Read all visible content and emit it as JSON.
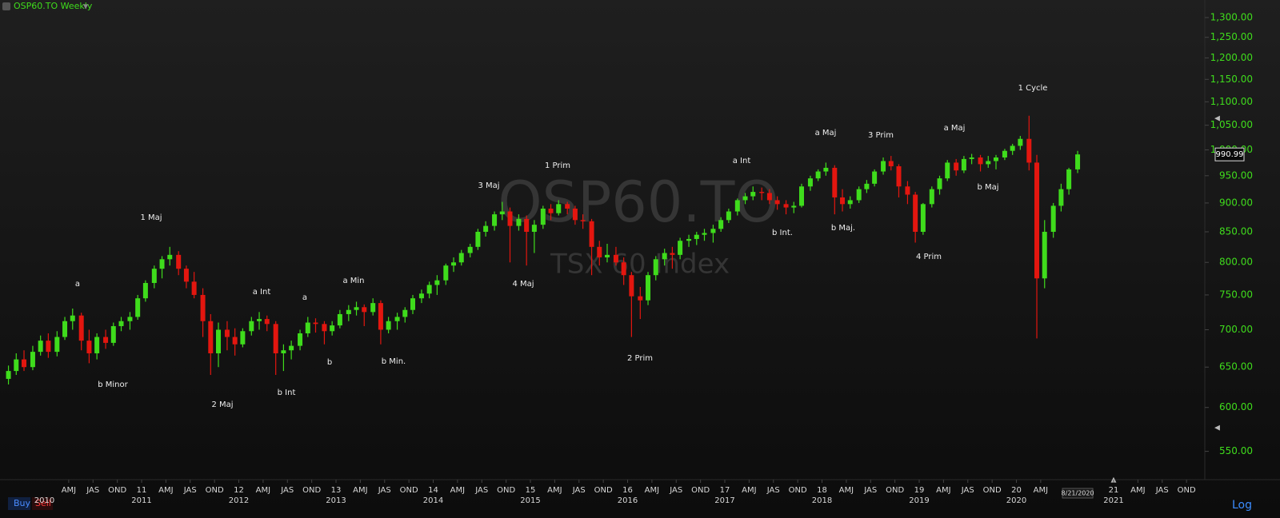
{
  "chart_data": {
    "type": "candlestick",
    "title": "OSP60.TO Weekly",
    "watermark": "OSP60.TO",
    "watermark_subtitle": "TSX 60 Index",
    "buttons": [
      "Buy",
      "Sell"
    ],
    "scale_label": "Log",
    "last_date": "8/21/2020",
    "last_price": 990.99,
    "log": true,
    "grid": false,
    "up_color": "#3fdc1c",
    "down_color": "#e3160f",
    "xlim": [
      2009.543,
      2021.93
    ],
    "ylim": [
      520,
      1346
    ],
    "yticks": [
      {
        "value": 550,
        "label": "550.00"
      },
      {
        "value": 600,
        "label": "600.00"
      },
      {
        "value": 650,
        "label": "650.00"
      },
      {
        "value": 700,
        "label": "700.00"
      },
      {
        "value": 750,
        "label": "750.00"
      },
      {
        "value": 800,
        "label": "800.00"
      },
      {
        "value": 850,
        "label": "850.00"
      },
      {
        "value": 900,
        "label": "900.00"
      },
      {
        "value": 950,
        "label": "950.00"
      },
      {
        "value": 1000,
        "label": "1,000.00"
      },
      {
        "value": 1050,
        "label": "1,050.00"
      },
      {
        "value": 1100,
        "label": "1,100.00"
      },
      {
        "value": 1150,
        "label": "1,150.00"
      },
      {
        "value": 1200,
        "label": "1,200.00"
      },
      {
        "value": 1250,
        "label": "1,250.00"
      },
      {
        "value": 1300,
        "label": "1,300.00"
      }
    ],
    "xticks": [
      {
        "value": 2010.25,
        "label": "AMJ"
      },
      {
        "value": 2010.5,
        "label": "JAS"
      },
      {
        "value": 2010.75,
        "label": "OND"
      },
      {
        "value": 2011,
        "label": "11"
      },
      {
        "value": 2011.25,
        "label": "AMJ"
      },
      {
        "value": 2011.5,
        "label": "JAS"
      },
      {
        "value": 2011.75,
        "label": "OND"
      },
      {
        "value": 2012,
        "label": "12"
      },
      {
        "value": 2012.25,
        "label": "AMJ"
      },
      {
        "value": 2012.5,
        "label": "JAS"
      },
      {
        "value": 2012.75,
        "label": "OND"
      },
      {
        "value": 2013,
        "label": "13"
      },
      {
        "value": 2013.25,
        "label": "AMJ"
      },
      {
        "value": 2013.5,
        "label": "JAS"
      },
      {
        "value": 2013.75,
        "label": "OND"
      },
      {
        "value": 2014,
        "label": "14"
      },
      {
        "value": 2014.25,
        "label": "AMJ"
      },
      {
        "value": 2014.5,
        "label": "JAS"
      },
      {
        "value": 2014.75,
        "label": "OND"
      },
      {
        "value": 2015,
        "label": "15"
      },
      {
        "value": 2015.25,
        "label": "AMJ"
      },
      {
        "value": 2015.5,
        "label": "JAS"
      },
      {
        "value": 2015.75,
        "label": "OND"
      },
      {
        "value": 2016,
        "label": "16"
      },
      {
        "value": 2016.25,
        "label": "AMJ"
      },
      {
        "value": 2016.5,
        "label": "JAS"
      },
      {
        "value": 2016.75,
        "label": "OND"
      },
      {
        "value": 2017,
        "label": "17"
      },
      {
        "value": 2017.25,
        "label": "AMJ"
      },
      {
        "value": 2017.5,
        "label": "JAS"
      },
      {
        "value": 2017.75,
        "label": "OND"
      },
      {
        "value": 2018,
        "label": "18"
      },
      {
        "value": 2018.25,
        "label": "AMJ"
      },
      {
        "value": 2018.5,
        "label": "JAS"
      },
      {
        "value": 2018.75,
        "label": "OND"
      },
      {
        "value": 2019,
        "label": "19"
      },
      {
        "value": 2019.25,
        "label": "AMJ"
      },
      {
        "value": 2019.5,
        "label": "JAS"
      },
      {
        "value": 2019.75,
        "label": "OND"
      },
      {
        "value": 2020,
        "label": "20"
      },
      {
        "value": 2020.25,
        "label": "AMJ"
      },
      {
        "value": 2021,
        "label": "21"
      },
      {
        "value": 2021.25,
        "label": "AMJ"
      },
      {
        "value": 2021.5,
        "label": "JAS"
      },
      {
        "value": 2021.75,
        "label": "OND"
      }
    ],
    "year_ticks": [
      2010,
      2011,
      2012,
      2013,
      2014,
      2015,
      2016,
      2017,
      2018,
      2019,
      2020,
      2021
    ],
    "annotations": [
      "a",
      "b Minor",
      "1 Maj",
      "2 Maj",
      "a Int",
      "b Int",
      "a",
      "b",
      "a Min",
      "b Min.",
      "3 Maj",
      "4 Maj",
      "1 Prim",
      "2 Prim",
      "a Int",
      "b Int.",
      "a Maj",
      "b Maj.",
      "3 Prim",
      "4 Prim",
      "a Maj",
      "b Maj",
      "1 Cycle"
    ],
    "x": [
      2009.63,
      2009.71,
      2009.79,
      2009.88,
      2009.96,
      2010.04,
      2010.13,
      2010.21,
      2010.29,
      2010.38,
      2010.46,
      2010.54,
      2010.63,
      2010.71,
      2010.79,
      2010.88,
      2010.96,
      2011.04,
      2011.13,
      2011.21,
      2011.29,
      2011.38,
      2011.46,
      2011.54,
      2011.63,
      2011.71,
      2011.79,
      2011.88,
      2011.96,
      2012.04,
      2012.13,
      2012.21,
      2012.29,
      2012.38,
      2012.46,
      2012.54,
      2012.63,
      2012.71,
      2012.79,
      2012.88,
      2012.96,
      2013.04,
      2013.13,
      2013.21,
      2013.29,
      2013.38,
      2013.46,
      2013.54,
      2013.63,
      2013.71,
      2013.79,
      2013.88,
      2013.96,
      2014.04,
      2014.13,
      2014.21,
      2014.29,
      2014.38,
      2014.46,
      2014.54,
      2014.63,
      2014.71,
      2014.79,
      2014.88,
      2014.96,
      2015.04,
      2015.13,
      2015.21,
      2015.29,
      2015.38,
      2015.46,
      2015.54,
      2015.63,
      2015.71,
      2015.79,
      2015.88,
      2015.96,
      2016.04,
      2016.13,
      2016.21,
      2016.29,
      2016.38,
      2016.46,
      2016.54,
      2016.63,
      2016.71,
      2016.79,
      2016.88,
      2016.96,
      2017.04,
      2017.13,
      2017.21,
      2017.29,
      2017.38,
      2017.46,
      2017.54,
      2017.63,
      2017.71,
      2017.79,
      2017.88,
      2017.96,
      2018.04,
      2018.13,
      2018.21,
      2018.29,
      2018.38,
      2018.46,
      2018.54,
      2018.63,
      2018.71,
      2018.79,
      2018.88,
      2018.96,
      2019.04,
      2019.13,
      2019.21,
      2019.29,
      2019.38,
      2019.46,
      2019.54,
      2019.63,
      2019.71,
      2019.79,
      2019.88,
      2019.96,
      2020.04,
      2020.13,
      2020.21,
      2020.29,
      2020.38,
      2020.46,
      2020.54,
      2020.63
    ],
    "open": [
      635,
      645,
      660,
      650,
      670,
      685,
      670,
      690,
      712,
      720,
      685,
      668,
      690,
      682,
      705,
      712,
      718,
      745,
      768,
      790,
      805,
      812,
      790,
      770,
      750,
      712,
      668,
      700,
      690,
      680,
      698,
      712,
      715,
      708,
      668,
      672,
      678,
      695,
      710,
      708,
      698,
      706,
      722,
      728,
      732,
      725,
      738,
      700,
      712,
      718,
      728,
      745,
      752,
      765,
      772,
      795,
      800,
      815,
      825,
      850,
      860,
      880,
      885,
      860,
      872,
      850,
      862,
      890,
      882,
      898,
      890,
      870,
      868,
      825,
      808,
      812,
      800,
      780,
      748,
      742,
      780,
      805,
      815,
      812,
      835,
      838,
      845,
      848,
      855,
      870,
      885,
      905,
      912,
      920,
      918,
      905,
      898,
      892,
      895,
      930,
      945,
      958,
      965,
      910,
      898,
      905,
      925,
      935,
      958,
      978,
      968,
      930,
      915,
      850,
      898,
      925,
      945,
      975,
      960,
      982,
      985,
      972,
      978,
      985,
      998,
      1008,
      1022,
      975,
      775,
      850,
      895,
      925,
      962
    ],
    "high": [
      652,
      668,
      672,
      678,
      692,
      695,
      698,
      718,
      730,
      724,
      700,
      695,
      700,
      710,
      718,
      725,
      750,
      772,
      795,
      810,
      825,
      818,
      795,
      785,
      760,
      722,
      710,
      712,
      702,
      702,
      718,
      725,
      720,
      712,
      680,
      685,
      700,
      718,
      716,
      712,
      712,
      728,
      735,
      740,
      736,
      745,
      742,
      718,
      724,
      732,
      750,
      758,
      770,
      780,
      798,
      808,
      820,
      830,
      855,
      868,
      885,
      902,
      892,
      880,
      878,
      870,
      895,
      898,
      905,
      902,
      895,
      880,
      872,
      835,
      830,
      825,
      808,
      785,
      762,
      785,
      810,
      822,
      825,
      840,
      845,
      850,
      855,
      862,
      875,
      890,
      908,
      918,
      930,
      928,
      925,
      912,
      905,
      902,
      935,
      950,
      962,
      975,
      970,
      925,
      912,
      930,
      942,
      962,
      985,
      988,
      972,
      940,
      920,
      900,
      930,
      950,
      980,
      982,
      988,
      992,
      990,
      988,
      990,
      1002,
      1012,
      1028,
      1070,
      990,
      870,
      900,
      935,
      965,
      998
    ],
    "low": [
      628,
      640,
      645,
      646,
      665,
      662,
      664,
      686,
      700,
      672,
      655,
      660,
      674,
      678,
      698,
      700,
      714,
      740,
      760,
      775,
      795,
      780,
      760,
      745,
      690,
      640,
      650,
      672,
      665,
      676,
      692,
      700,
      698,
      640,
      645,
      660,
      672,
      690,
      696,
      680,
      692,
      702,
      712,
      720,
      705,
      720,
      680,
      695,
      700,
      710,
      722,
      738,
      745,
      750,
      765,
      785,
      795,
      808,
      820,
      842,
      852,
      870,
      800,
      852,
      795,
      815,
      855,
      870,
      878,
      880,
      862,
      855,
      780,
      795,
      800,
      795,
      765,
      690,
      715,
      735,
      772,
      795,
      790,
      805,
      825,
      828,
      835,
      832,
      850,
      865,
      878,
      898,
      905,
      905,
      898,
      888,
      880,
      882,
      892,
      922,
      940,
      950,
      880,
      885,
      890,
      900,
      918,
      930,
      952,
      960,
      910,
      898,
      832,
      845,
      892,
      915,
      940,
      950,
      955,
      972,
      958,
      965,
      962,
      980,
      990,
      1000,
      960,
      688,
      760,
      840,
      885,
      915,
      955
    ],
    "close": [
      645,
      660,
      650,
      670,
      685,
      670,
      690,
      712,
      720,
      685,
      668,
      690,
      682,
      705,
      712,
      718,
      745,
      768,
      790,
      805,
      812,
      790,
      770,
      750,
      712,
      668,
      700,
      690,
      680,
      698,
      712,
      715,
      708,
      668,
      672,
      678,
      695,
      710,
      708,
      698,
      706,
      722,
      728,
      732,
      725,
      738,
      700,
      712,
      718,
      728,
      745,
      752,
      765,
      772,
      795,
      800,
      815,
      825,
      850,
      860,
      880,
      885,
      860,
      872,
      850,
      862,
      890,
      882,
      898,
      890,
      870,
      868,
      825,
      808,
      812,
      800,
      780,
      748,
      742,
      780,
      805,
      815,
      812,
      835,
      838,
      845,
      848,
      855,
      870,
      885,
      905,
      912,
      920,
      918,
      905,
      898,
      892,
      895,
      930,
      945,
      958,
      965,
      910,
      898,
      905,
      925,
      935,
      958,
      978,
      968,
      930,
      915,
      850,
      898,
      925,
      945,
      975,
      960,
      982,
      985,
      972,
      978,
      985,
      998,
      1008,
      1022,
      975,
      775,
      850,
      895,
      925,
      962,
      990.99
    ]
  }
}
